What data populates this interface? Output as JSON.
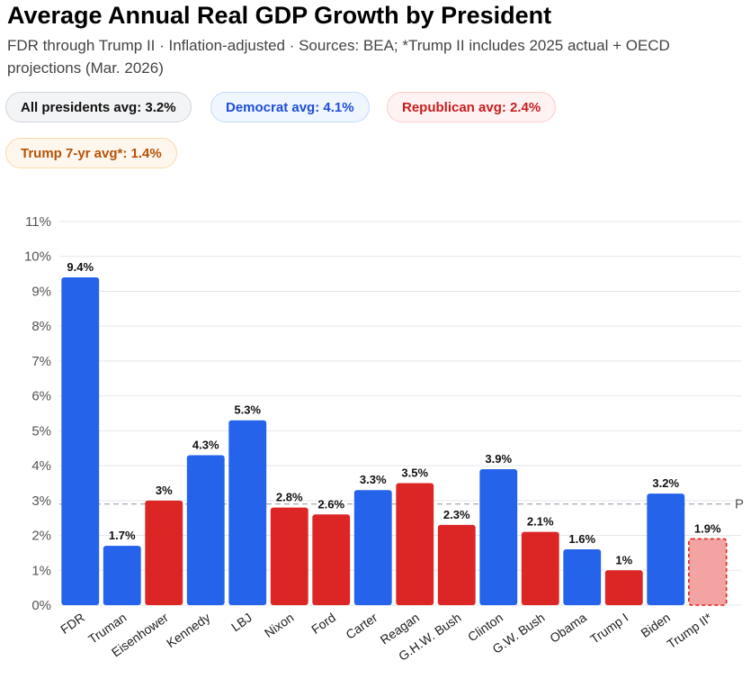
{
  "title": "Average Annual Real GDP Growth by President",
  "subtitle": "FDR through Trump II · Inflation-adjusted · Sources: BEA; *Trump II includes 2025 actual + OECD projections (Mar. 2026)",
  "pills": {
    "all": "All presidents avg: 3.2%",
    "democrat": "Democrat avg: 4.1%",
    "republican": "Republican avg: 2.4%",
    "trump": "Trump 7-yr avg*: 1.4%"
  },
  "colors": {
    "democrat": "#2563eb",
    "republican": "#dc2626",
    "projection_fill": "#f4a3a3",
    "projection_border": "#dc2626",
    "grid": "#e5e7eb",
    "avg_line": "#9ca3af"
  },
  "chart_data": {
    "type": "bar",
    "title": "Average Annual Real GDP Growth by President",
    "xlabel": "",
    "ylabel": "",
    "ylim": [
      0,
      11
    ],
    "y_ticks": [
      "0%",
      "1%",
      "2%",
      "3%",
      "4%",
      "5%",
      "6%",
      "7%",
      "8%",
      "9%",
      "10%",
      "11%"
    ],
    "avg_line_value": 2.9,
    "avg_line_label": "P",
    "categories": [
      "FDR",
      "Truman",
      "Eisenhower",
      "Kennedy",
      "LBJ",
      "Nixon",
      "Ford",
      "Carter",
      "Reagan",
      "G.H.W. Bush",
      "Clinton",
      "G.W. Bush",
      "Obama",
      "Trump I",
      "Biden",
      "Trump II*"
    ],
    "values": [
      9.4,
      1.7,
      3.0,
      4.3,
      5.3,
      2.8,
      2.6,
      3.3,
      3.5,
      2.3,
      3.9,
      2.1,
      1.6,
      1.0,
      3.2,
      1.9
    ],
    "value_labels": [
      "9.4%",
      "1.7%",
      "3%",
      "4.3%",
      "5.3%",
      "2.8%",
      "2.6%",
      "3.3%",
      "3.5%",
      "2.3%",
      "3.9%",
      "2.1%",
      "1.6%",
      "1%",
      "3.2%",
      "1.9%"
    ],
    "party": [
      "D",
      "D",
      "R",
      "D",
      "D",
      "R",
      "R",
      "D",
      "R",
      "R",
      "D",
      "R",
      "D",
      "R",
      "D",
      "R"
    ],
    "projected": [
      false,
      false,
      false,
      false,
      false,
      false,
      false,
      false,
      false,
      false,
      false,
      false,
      false,
      false,
      false,
      true
    ]
  }
}
